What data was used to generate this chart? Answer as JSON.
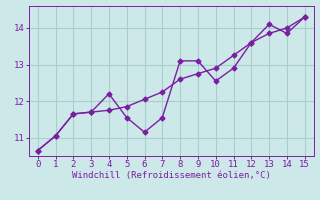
{
  "line1_x": [
    0,
    1,
    2,
    3,
    4,
    5,
    6,
    7,
    8,
    9,
    10,
    11,
    12,
    13,
    14,
    15
  ],
  "line1_y": [
    10.65,
    11.05,
    11.65,
    11.7,
    11.75,
    11.85,
    12.05,
    12.25,
    12.6,
    12.75,
    12.9,
    13.25,
    13.6,
    13.85,
    14.0,
    14.3
  ],
  "line2_x": [
    0,
    1,
    2,
    3,
    4,
    5,
    6,
    7,
    8,
    9,
    10,
    11,
    12,
    13,
    14,
    15
  ],
  "line2_y": [
    10.65,
    11.05,
    11.65,
    11.7,
    12.2,
    11.55,
    11.15,
    11.55,
    13.1,
    13.1,
    12.55,
    12.9,
    13.6,
    14.1,
    13.85,
    14.3
  ],
  "line_color": "#7b1fa2",
  "bg_color": "#cce8e8",
  "grid_color": "#aacece",
  "xlabel": "Windchill (Refroidissement éolien,°C)",
  "xlabel_color": "#7b1fa2",
  "tick_color": "#7b1fa2",
  "ylim": [
    10.5,
    14.6
  ],
  "xlim": [
    -0.5,
    15.5
  ],
  "yticks": [
    11,
    12,
    13,
    14
  ],
  "xticks": [
    0,
    1,
    2,
    3,
    4,
    5,
    6,
    7,
    8,
    9,
    10,
    11,
    12,
    13,
    14,
    15
  ],
  "marker": "D",
  "markersize": 2.5,
  "linewidth": 1.0
}
